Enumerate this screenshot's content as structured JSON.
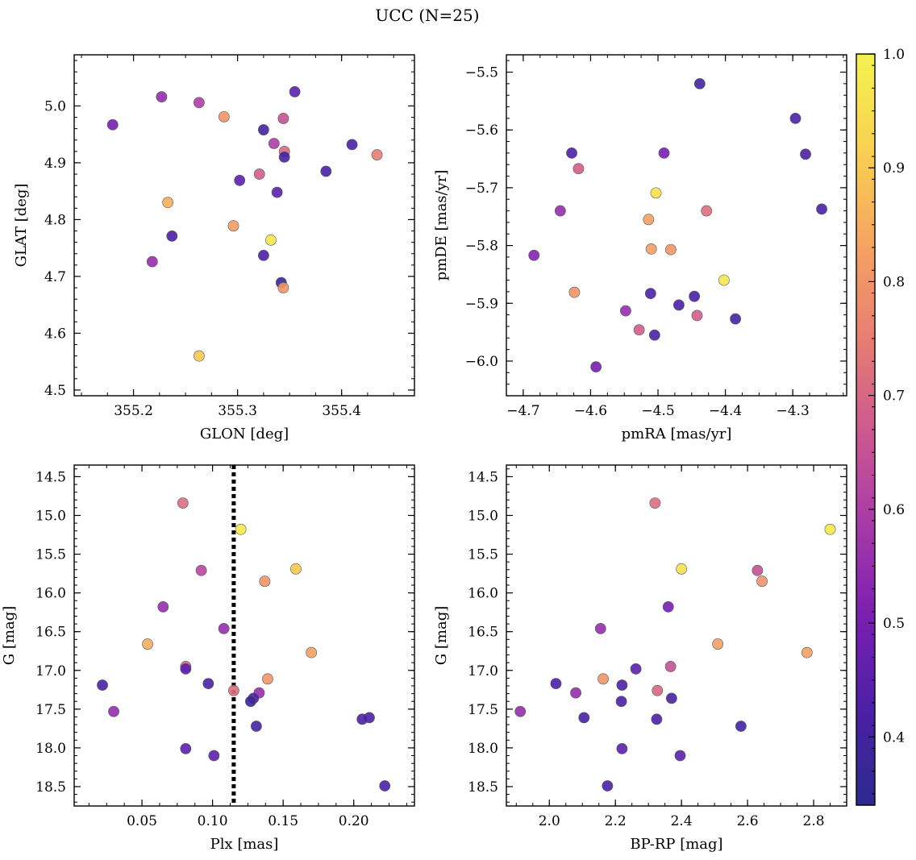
{
  "chart_data": {
    "figure_title": "UCC (N=25)",
    "colorbar": {
      "colormap": "plasma-like",
      "range": [
        0.34,
        1.0
      ],
      "ticks": [
        0.4,
        0.5,
        0.6,
        0.7,
        0.8,
        0.9,
        1.0
      ],
      "tick_labels": [
        "0.4",
        "0.5",
        "0.6",
        "0.7",
        "0.8",
        "0.9",
        "1.0"
      ],
      "stops": [
        "#2c2a8e",
        "#4b20a4",
        "#7a1fb0",
        "#a83aa8",
        "#cc5a8e",
        "#e77f72",
        "#f6a561",
        "#f8d251",
        "#f4f250"
      ]
    },
    "panels": [
      {
        "type": "scatter",
        "title": "",
        "xlabel": "GLON [deg]",
        "ylabel": "GLAT [deg]",
        "xlim": [
          355.143,
          355.47
        ],
        "ylim": [
          4.49,
          5.09
        ],
        "xticks": [
          355.2,
          355.3,
          355.4
        ],
        "xtick_labels": [
          "355.2",
          "355.3",
          "355.4"
        ],
        "yticks": [
          4.5,
          4.6,
          4.7,
          4.8,
          4.9,
          5.0
        ],
        "ytick_labels": [
          "4.5",
          "4.6",
          "4.7",
          "4.8",
          "4.9",
          "5.0"
        ],
        "points": [
          {
            "x": 355.18,
            "y": 4.967,
            "c": 0.5
          },
          {
            "x": 355.227,
            "y": 5.016,
            "c": 0.55
          },
          {
            "x": 355.263,
            "y": 5.006,
            "c": 0.6
          },
          {
            "x": 355.287,
            "y": 4.981,
            "c": 0.8
          },
          {
            "x": 355.355,
            "y": 5.025,
            "c": 0.45
          },
          {
            "x": 355.344,
            "y": 4.978,
            "c": 0.65
          },
          {
            "x": 355.325,
            "y": 4.958,
            "c": 0.4
          },
          {
            "x": 355.335,
            "y": 4.934,
            "c": 0.6
          },
          {
            "x": 355.345,
            "y": 4.92,
            "c": 0.7
          },
          {
            "x": 355.345,
            "y": 4.91,
            "c": 0.4
          },
          {
            "x": 355.41,
            "y": 4.932,
            "c": 0.42
          },
          {
            "x": 355.434,
            "y": 4.914,
            "c": 0.75
          },
          {
            "x": 355.385,
            "y": 4.885,
            "c": 0.42
          },
          {
            "x": 355.321,
            "y": 4.88,
            "c": 0.68
          },
          {
            "x": 355.302,
            "y": 4.869,
            "c": 0.45
          },
          {
            "x": 355.338,
            "y": 4.848,
            "c": 0.45
          },
          {
            "x": 355.233,
            "y": 4.83,
            "c": 0.85
          },
          {
            "x": 355.296,
            "y": 4.789,
            "c": 0.82
          },
          {
            "x": 355.332,
            "y": 4.764,
            "c": 0.97
          },
          {
            "x": 355.237,
            "y": 4.771,
            "c": 0.42
          },
          {
            "x": 355.325,
            "y": 4.737,
            "c": 0.42
          },
          {
            "x": 355.218,
            "y": 4.726,
            "c": 0.55
          },
          {
            "x": 355.342,
            "y": 4.689,
            "c": 0.38
          },
          {
            "x": 355.344,
            "y": 4.68,
            "c": 0.8
          },
          {
            "x": 355.263,
            "y": 4.56,
            "c": 0.9
          }
        ]
      },
      {
        "type": "scatter",
        "title": "",
        "xlabel": "pmRA [mas/yr]",
        "ylabel": "pmDE [mas/yr]",
        "xlim": [
          -4.725,
          -4.22
        ],
        "ylim": [
          -6.06,
          -5.47
        ],
        "xticks": [
          -4.7,
          -4.6,
          -4.5,
          -4.4,
          -4.3
        ],
        "xtick_labels": [
          "−4.7",
          "−4.6",
          "−4.5",
          "−4.4",
          "−4.3"
        ],
        "yticks": [
          -6.0,
          -5.9,
          -5.8,
          -5.7,
          -5.6,
          -5.5
        ],
        "ytick_labels": [
          "−6.0",
          "−5.9",
          "−5.8",
          "−5.7",
          "−5.6",
          "−5.5"
        ],
        "points": [
          {
            "x": -4.438,
            "y": -5.52,
            "c": 0.4
          },
          {
            "x": -4.296,
            "y": -5.58,
            "c": 0.42
          },
          {
            "x": -4.281,
            "y": -5.642,
            "c": 0.42
          },
          {
            "x": -4.628,
            "y": -5.64,
            "c": 0.42
          },
          {
            "x": -4.491,
            "y": -5.64,
            "c": 0.5
          },
          {
            "x": -4.618,
            "y": -5.667,
            "c": 0.68
          },
          {
            "x": -4.503,
            "y": -5.709,
            "c": 0.95
          },
          {
            "x": -4.645,
            "y": -5.74,
            "c": 0.55
          },
          {
            "x": -4.428,
            "y": -5.74,
            "c": 0.72
          },
          {
            "x": -4.257,
            "y": -5.737,
            "c": 0.42
          },
          {
            "x": -4.514,
            "y": -5.755,
            "c": 0.82
          },
          {
            "x": -4.51,
            "y": -5.806,
            "c": 0.82
          },
          {
            "x": -4.481,
            "y": -5.807,
            "c": 0.8
          },
          {
            "x": -4.684,
            "y": -5.817,
            "c": 0.52
          },
          {
            "x": -4.402,
            "y": -5.86,
            "c": 0.97
          },
          {
            "x": -4.624,
            "y": -5.881,
            "c": 0.8
          },
          {
            "x": -4.511,
            "y": -5.883,
            "c": 0.42
          },
          {
            "x": -4.446,
            "y": -5.888,
            "c": 0.42
          },
          {
            "x": -4.469,
            "y": -5.903,
            "c": 0.42
          },
          {
            "x": -4.548,
            "y": -5.913,
            "c": 0.55
          },
          {
            "x": -4.442,
            "y": -5.921,
            "c": 0.68
          },
          {
            "x": -4.385,
            "y": -5.927,
            "c": 0.4
          },
          {
            "x": -4.528,
            "y": -5.946,
            "c": 0.68
          },
          {
            "x": -4.505,
            "y": -5.955,
            "c": 0.42
          },
          {
            "x": -4.592,
            "y": -6.01,
            "c": 0.5
          }
        ]
      },
      {
        "type": "scatter",
        "title": "",
        "xlabel": "Plx [mas]",
        "ylabel": "G [mag]",
        "xlim": [
          0.002,
          0.243
        ],
        "ylim": [
          18.75,
          14.35
        ],
        "y_inverted": true,
        "vline": {
          "x": 0.115,
          "style": "dotted"
        },
        "xticks": [
          0.05,
          0.1,
          0.15,
          0.2
        ],
        "xtick_labels": [
          "0.05",
          "0.10",
          "0.15",
          "0.20"
        ],
        "yticks": [
          14.5,
          15.0,
          15.5,
          16.0,
          16.5,
          17.0,
          17.5,
          18.0,
          18.5
        ],
        "ytick_labels": [
          "14.5",
          "15.0",
          "15.5",
          "16.0",
          "16.5",
          "17.0",
          "17.5",
          "18.0",
          "18.5"
        ],
        "points": [
          {
            "x": 0.079,
            "y": 14.84,
            "c": 0.72
          },
          {
            "x": 0.12,
            "y": 15.18,
            "c": 0.97
          },
          {
            "x": 0.092,
            "y": 15.71,
            "c": 0.62
          },
          {
            "x": 0.159,
            "y": 15.69,
            "c": 0.9
          },
          {
            "x": 0.137,
            "y": 15.85,
            "c": 0.8
          },
          {
            "x": 0.065,
            "y": 16.18,
            "c": 0.55
          },
          {
            "x": 0.108,
            "y": 16.46,
            "c": 0.55
          },
          {
            "x": 0.054,
            "y": 16.66,
            "c": 0.85
          },
          {
            "x": 0.17,
            "y": 16.77,
            "c": 0.82
          },
          {
            "x": 0.081,
            "y": 16.95,
            "c": 0.7
          },
          {
            "x": 0.081,
            "y": 16.98,
            "c": 0.45
          },
          {
            "x": 0.139,
            "y": 17.11,
            "c": 0.8
          },
          {
            "x": 0.097,
            "y": 17.17,
            "c": 0.42
          },
          {
            "x": 0.022,
            "y": 17.19,
            "c": 0.42
          },
          {
            "x": 0.115,
            "y": 17.26,
            "c": 0.72
          },
          {
            "x": 0.133,
            "y": 17.29,
            "c": 0.55
          },
          {
            "x": 0.129,
            "y": 17.36,
            "c": 0.42
          },
          {
            "x": 0.127,
            "y": 17.4,
            "c": 0.38
          },
          {
            "x": 0.03,
            "y": 17.53,
            "c": 0.55
          },
          {
            "x": 0.211,
            "y": 17.61,
            "c": 0.42
          },
          {
            "x": 0.206,
            "y": 17.63,
            "c": 0.42
          },
          {
            "x": 0.131,
            "y": 17.72,
            "c": 0.4
          },
          {
            "x": 0.081,
            "y": 18.01,
            "c": 0.45
          },
          {
            "x": 0.101,
            "y": 18.1,
            "c": 0.45
          },
          {
            "x": 0.222,
            "y": 18.49,
            "c": 0.42
          }
        ]
      },
      {
        "type": "scatter",
        "title": "",
        "xlabel": "BP-RP [mag]",
        "ylabel": "G [mag]",
        "xlim": [
          1.87,
          2.9
        ],
        "ylim": [
          18.75,
          14.35
        ],
        "y_inverted": true,
        "xticks": [
          2.0,
          2.2,
          2.4,
          2.6,
          2.8
        ],
        "xtick_labels": [
          "2.0",
          "2.2",
          "2.4",
          "2.6",
          "2.8"
        ],
        "yticks": [
          14.5,
          15.0,
          15.5,
          16.0,
          16.5,
          17.0,
          17.5,
          18.0,
          18.5
        ],
        "ytick_labels": [
          "14.5",
          "15.0",
          "15.5",
          "16.0",
          "16.5",
          "17.0",
          "17.5",
          "18.0",
          "18.5"
        ],
        "points": [
          {
            "x": 2.32,
            "y": 14.84,
            "c": 0.72
          },
          {
            "x": 2.85,
            "y": 15.18,
            "c": 0.97
          },
          {
            "x": 2.4,
            "y": 15.69,
            "c": 0.95
          },
          {
            "x": 2.63,
            "y": 15.71,
            "c": 0.65
          },
          {
            "x": 2.644,
            "y": 15.85,
            "c": 0.8
          },
          {
            "x": 2.36,
            "y": 16.18,
            "c": 0.5
          },
          {
            "x": 2.155,
            "y": 16.46,
            "c": 0.55
          },
          {
            "x": 2.51,
            "y": 16.66,
            "c": 0.82
          },
          {
            "x": 2.78,
            "y": 16.77,
            "c": 0.82
          },
          {
            "x": 2.367,
            "y": 16.95,
            "c": 0.65
          },
          {
            "x": 2.262,
            "y": 16.98,
            "c": 0.45
          },
          {
            "x": 2.163,
            "y": 17.11,
            "c": 0.8
          },
          {
            "x": 2.02,
            "y": 17.17,
            "c": 0.42
          },
          {
            "x": 2.22,
            "y": 17.19,
            "c": 0.42
          },
          {
            "x": 2.327,
            "y": 17.26,
            "c": 0.7
          },
          {
            "x": 2.08,
            "y": 17.29,
            "c": 0.55
          },
          {
            "x": 2.37,
            "y": 17.36,
            "c": 0.42
          },
          {
            "x": 2.218,
            "y": 17.4,
            "c": 0.42
          },
          {
            "x": 1.912,
            "y": 17.53,
            "c": 0.55
          },
          {
            "x": 2.105,
            "y": 17.61,
            "c": 0.42
          },
          {
            "x": 2.325,
            "y": 17.63,
            "c": 0.42
          },
          {
            "x": 2.58,
            "y": 17.72,
            "c": 0.4
          },
          {
            "x": 2.22,
            "y": 18.01,
            "c": 0.45
          },
          {
            "x": 2.396,
            "y": 18.1,
            "c": 0.45
          },
          {
            "x": 2.176,
            "y": 18.49,
            "c": 0.42
          }
        ]
      }
    ]
  }
}
